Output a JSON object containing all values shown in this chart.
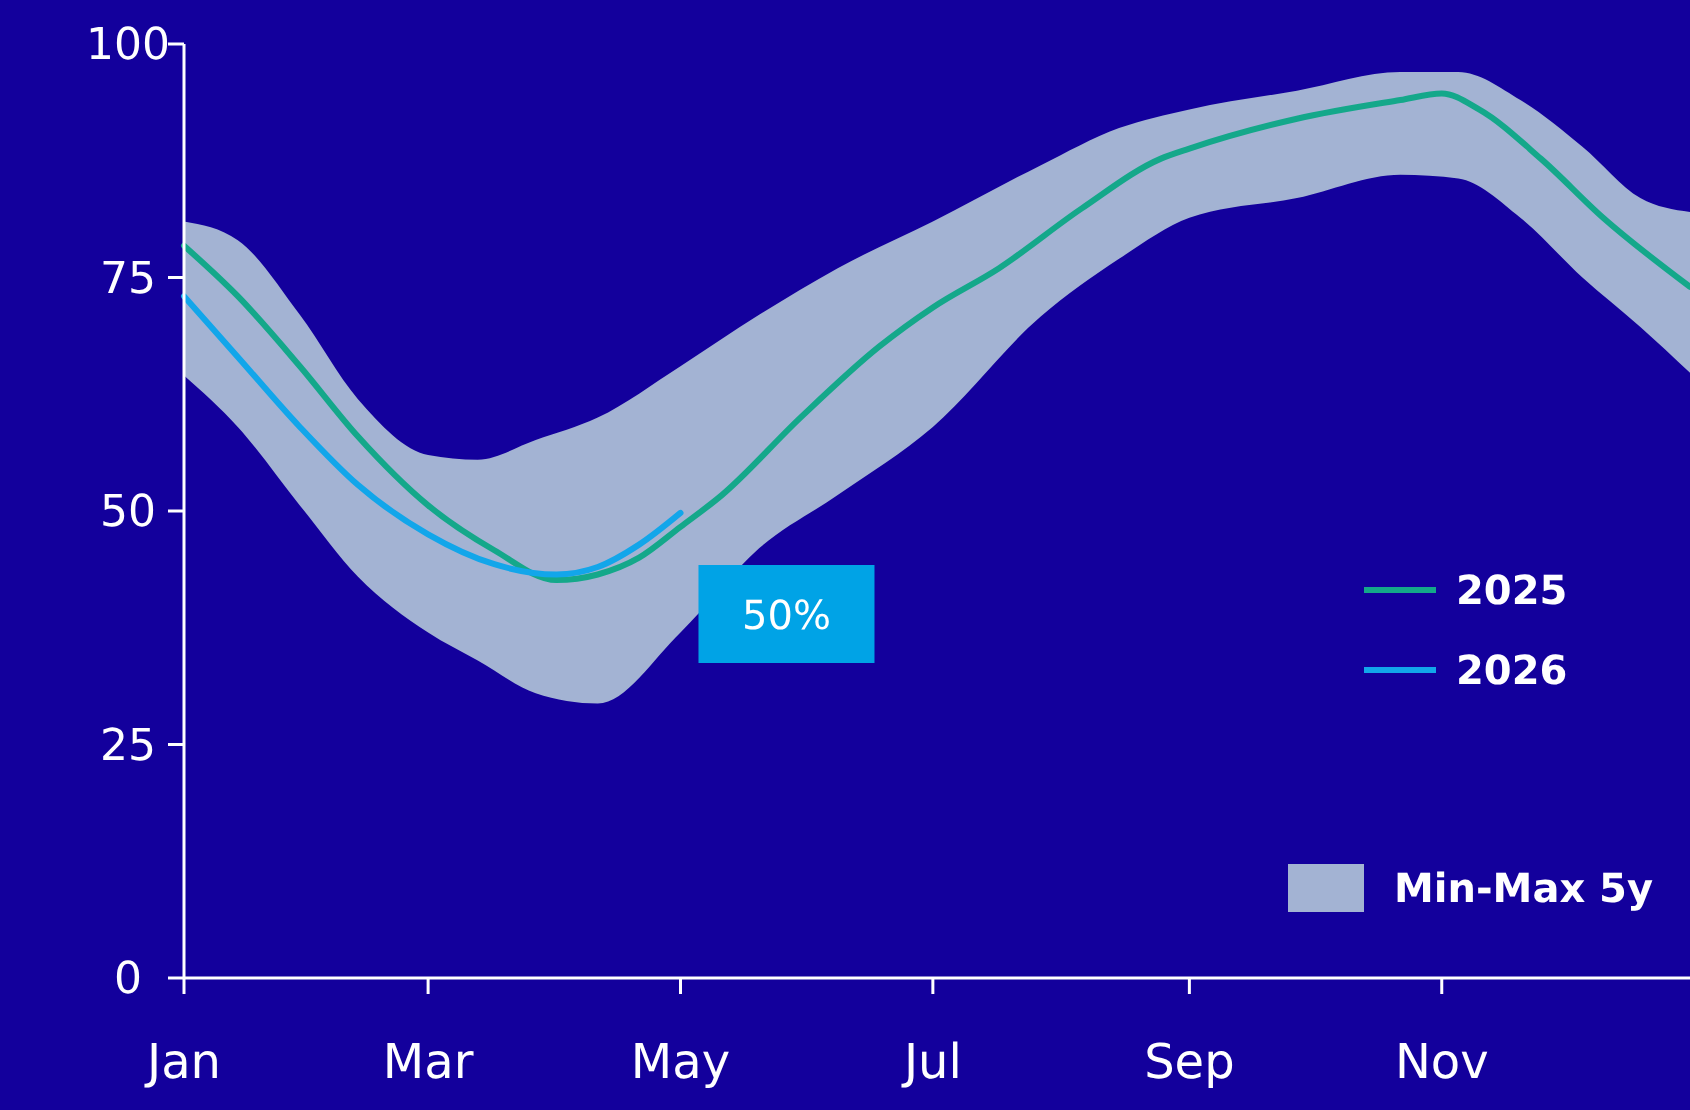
{
  "chart_data": {
    "type": "line",
    "xlim": [
      "--01-01",
      "--12-31"
    ],
    "xticks": [
      {
        "value": "--01-01",
        "label": "Jan"
      },
      {
        "value": "--03-01",
        "label": "Mar"
      },
      {
        "value": "--05-01",
        "label": "May"
      },
      {
        "value": "--07-01",
        "label": "Jul"
      },
      {
        "value": "--09-01",
        "label": "Sep"
      },
      {
        "value": "--11-01",
        "label": "Nov"
      }
    ],
    "ylim": [
      0,
      100
    ],
    "yticks": [
      0,
      25,
      50,
      75,
      100
    ],
    "grid": false,
    "legend": "right",
    "series": [
      {
        "name": "Min-Max 5y",
        "type": "area",
        "color": "#a3b3d3",
        "x": [
          "--01-01",
          "--01-14",
          "--01-29",
          "--02-12",
          "--03-01",
          "--03-13",
          "--03-27",
          "--04-11",
          "--05-01",
          "--05-20",
          "--06-08",
          "--07-01",
          "--07-27",
          "--08-15",
          "--09-01",
          "--09-27",
          "--10-22",
          "--11-05",
          "--11-20",
          "--12-05",
          "--12-19",
          "--12-31"
        ],
        "values": [
          null,
          null,
          null,
          null,
          null,
          null,
          null,
          null,
          null,
          null,
          null,
          null,
          null,
          null,
          null,
          null,
          null,
          null,
          null,
          null,
          null,
          null
        ],
        "upper": [
          81,
          79,
          71,
          62,
          56,
          55.5,
          57.6,
          60,
          65.5,
          71,
          76,
          81,
          87,
          91,
          93,
          95,
          97,
          97,
          94,
          89,
          83.5,
          82
        ],
        "lower": [
          64.5,
          59,
          50.6,
          43,
          37,
          34,
          30.5,
          29.4,
          37,
          46,
          51.7,
          59,
          70.8,
          77,
          81.4,
          83.5,
          86,
          85.6,
          81.4,
          75,
          69.7,
          64.8
        ]
      },
      {
        "name": "2025",
        "color": "#14a88a",
        "x": [
          "--01-01",
          "--01-14",
          "--01-29",
          "--02-12",
          "--03-01",
          "--03-17",
          "--04-01",
          "--04-11",
          "--04-21",
          "--05-01",
          "--05-11",
          "--05-30",
          "--06-18",
          "--07-01",
          "--07-17",
          "--08-06",
          "--08-25",
          "--09-01",
          "--09-27",
          "--10-22",
          "--11-01",
          "--11-10",
          "--11-25",
          "--12-10",
          "--12-31"
        ],
        "values": [
          78.4,
          73,
          65.5,
          58,
          50.6,
          45.8,
          42.6,
          43.2,
          45,
          48.3,
          51.7,
          60,
          67.6,
          71.8,
          76,
          82.4,
          87.7,
          88.8,
          92,
          94,
          94.7,
          93,
          87.7,
          81.4,
          74
        ]
      },
      {
        "name": "2026",
        "color": "#12a6ea",
        "x": [
          "--01-01",
          "--01-14",
          "--01-29",
          "--02-12",
          "--03-01",
          "--03-17",
          "--04-01",
          "--04-11",
          "--04-21",
          "--05-01"
        ],
        "values": [
          73,
          66.5,
          59,
          52.8,
          47.5,
          44.3,
          43.2,
          44,
          46.4,
          49.8
        ]
      }
    ],
    "annotations": [
      {
        "text": "50%",
        "x": "--05-01",
        "y": 50
      }
    ]
  }
}
